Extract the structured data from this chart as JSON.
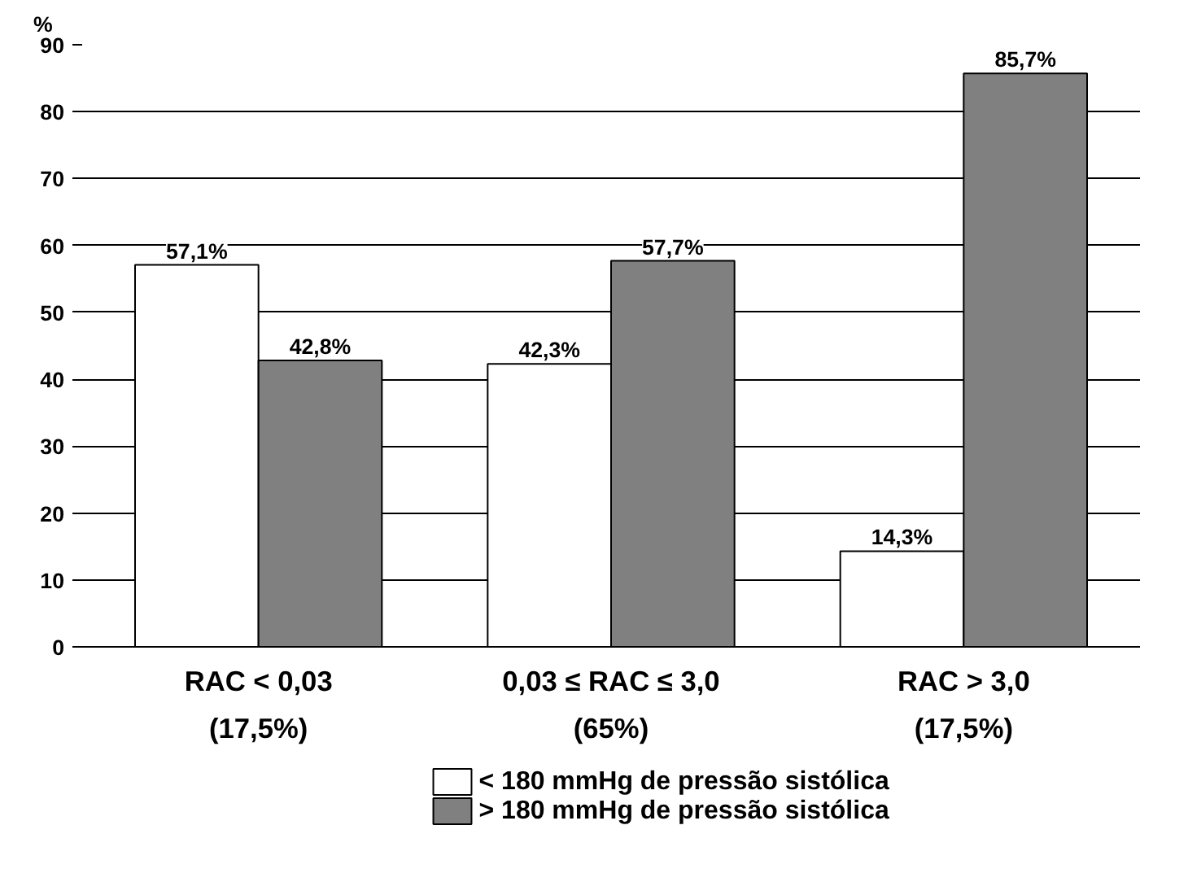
{
  "chart_data": {
    "type": "bar",
    "ylabel": "%",
    "categories": [
      "RAC < 0,03\n(17,5%)",
      "0,03 ≤ RAC ≤ 3,0\n(65%)",
      "RAC > 3,0\n(17,5%)"
    ],
    "series": [
      {
        "name": "< 180 mmHg de pressão sistólica",
        "color": "#ffffff",
        "values": [
          57.1,
          42.3,
          14.3
        ],
        "value_labels": [
          "57,1%",
          "42,3%",
          "14,3%"
        ]
      },
      {
        "name": "> 180 mmHg de pressão sistólica",
        "color": "#808080",
        "values": [
          42.8,
          57.7,
          85.7
        ],
        "value_labels": [
          "42,8%",
          "57,7%",
          "85,7%"
        ]
      }
    ],
    "ylim": [
      0,
      90
    ],
    "yticks": [
      0,
      10,
      20,
      30,
      40,
      50,
      60,
      70,
      80,
      90
    ],
    "grid": "y",
    "legend": "bottom"
  }
}
